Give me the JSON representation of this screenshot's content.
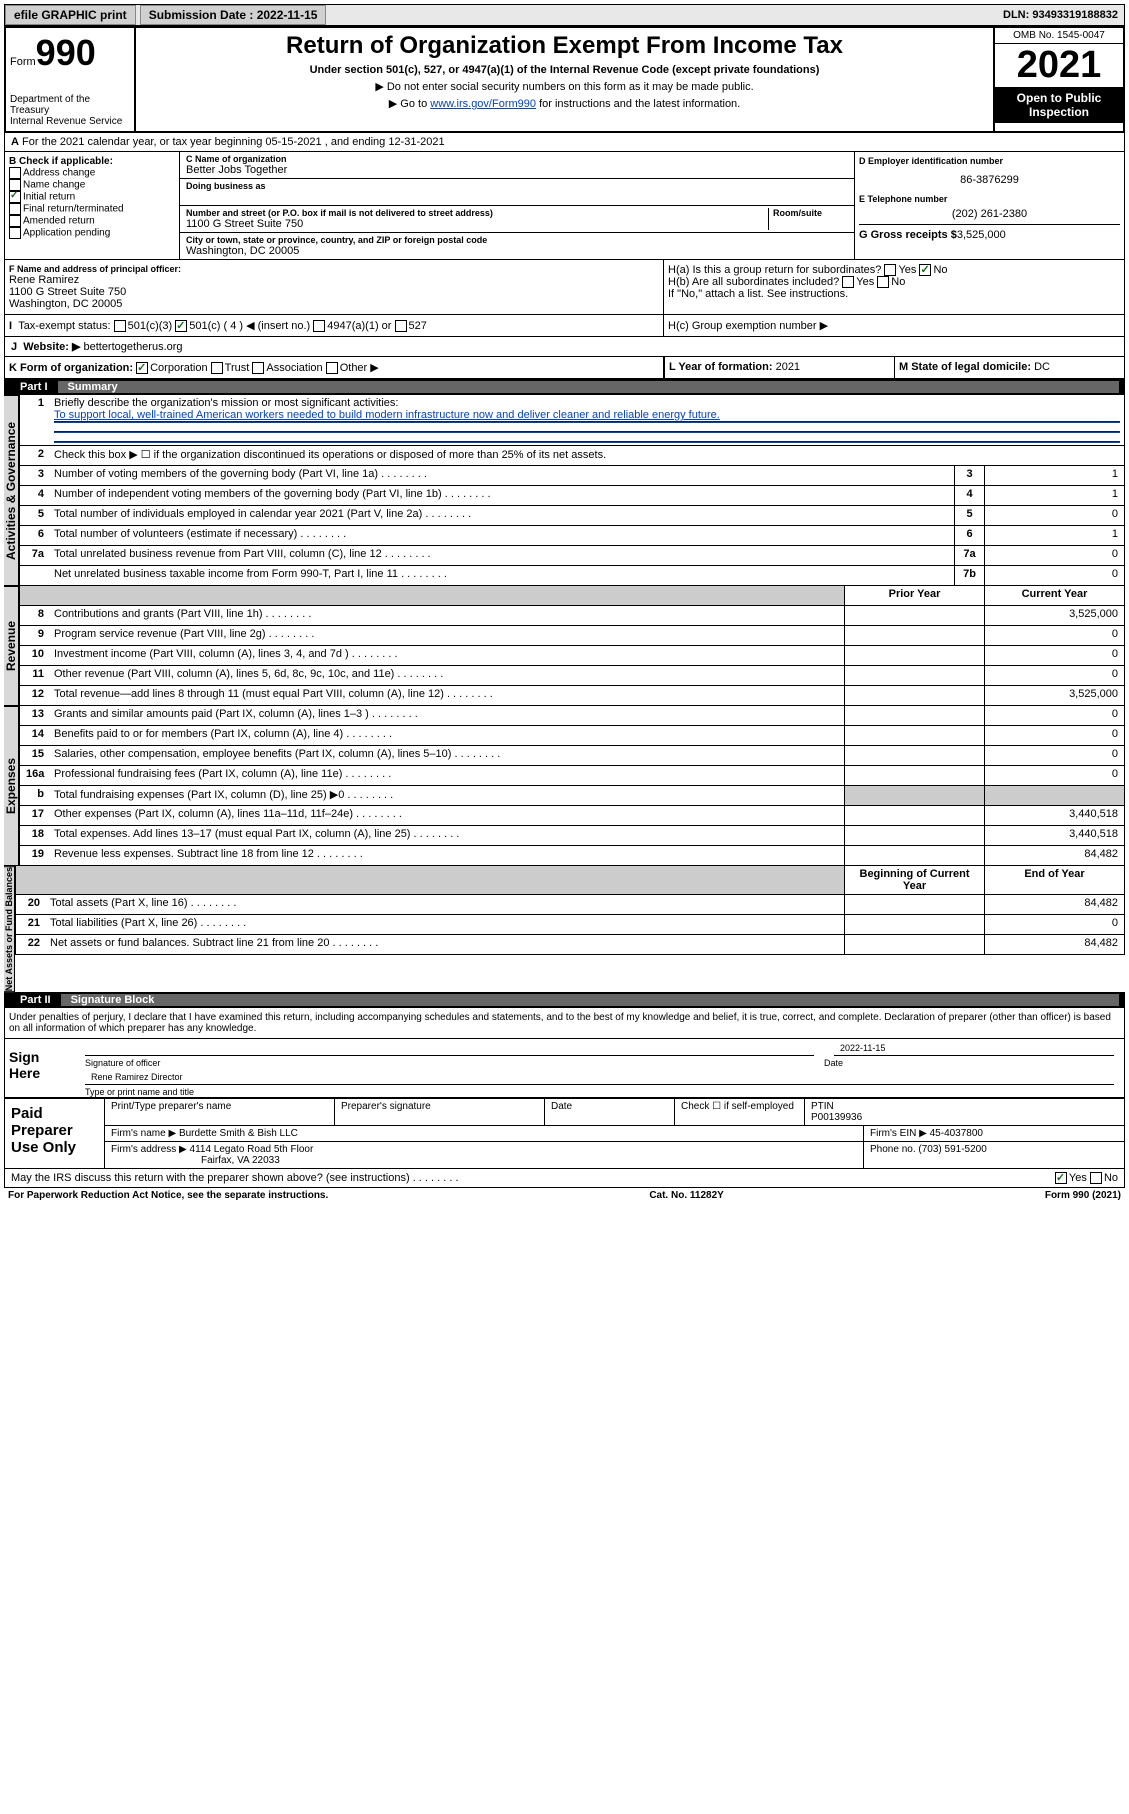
{
  "topbar": {
    "efile": "efile GRAPHIC print",
    "sub_label": "Submission Date : 2022-11-15",
    "dln": "DLN: 93493319188832"
  },
  "header": {
    "form_label": "Form",
    "form_num": "990",
    "title": "Return of Organization Exempt From Income Tax",
    "subtitle": "Under section 501(c), 527, or 4947(a)(1) of the Internal Revenue Code (except private foundations)",
    "note1": "▶ Do not enter social security numbers on this form as it may be made public.",
    "note2_prefix": "▶ Go to ",
    "note2_link": "www.irs.gov/Form990",
    "note2_suffix": " for instructions and the latest information.",
    "dept": "Department of the Treasury\nInternal Revenue Service",
    "omb": "OMB No. 1545-0047",
    "year": "2021",
    "inspect": "Open to Public Inspection"
  },
  "line_a": "For the 2021 calendar year, or tax year beginning 05-15-2021   , and ending 12-31-2021",
  "section_b": {
    "label": "B Check if applicable:",
    "opts": [
      "Address change",
      "Name change",
      "Initial return",
      "Final return/terminated",
      "Amended return",
      "Application pending"
    ],
    "checked_idx": 2
  },
  "section_c": {
    "name_label": "C Name of organization",
    "org_name": "Better Jobs Together",
    "dba_label": "Doing business as",
    "addr_label": "Number and street (or P.O. box if mail is not delivered to street address)",
    "room_label": "Room/suite",
    "addr": "1100 G Street Suite 750",
    "city_label": "City or town, state or province, country, and ZIP or foreign postal code",
    "city": "Washington, DC  20005"
  },
  "section_d": {
    "label": "D Employer identification number",
    "ein": "86-3876299"
  },
  "section_e": {
    "label": "E Telephone number",
    "phone": "(202) 261-2380"
  },
  "section_g": {
    "label": "G Gross receipts $",
    "amount": "3,525,000"
  },
  "section_f": {
    "label": "F  Name and address of principal officer:",
    "name": "Rene Ramirez",
    "addr1": "1100 G Street Suite 750",
    "addr2": "Washington, DC  20005"
  },
  "section_h": {
    "ha": "H(a)  Is this a group return for subordinates?",
    "hb": "H(b)  Are all subordinates included?",
    "hb_note": "If \"No,\" attach a list. See instructions.",
    "hc": "H(c)  Group exemption number ▶",
    "yes": "Yes",
    "no": "No"
  },
  "section_i": {
    "label": "Tax-exempt status:",
    "opts": [
      "501(c)(3)",
      "501(c) ( 4 ) ◀ (insert no.)",
      "4947(a)(1) or",
      "527"
    ]
  },
  "section_j": {
    "label": "Website: ▶",
    "url": "bettertogetherus.org"
  },
  "section_k": {
    "label": "K Form of organization:",
    "opts": [
      "Corporation",
      "Trust",
      "Association",
      "Other ▶"
    ]
  },
  "section_l": {
    "label": "L Year of formation:",
    "val": "2021"
  },
  "section_m": {
    "label": "M State of legal domicile:",
    "val": "DC"
  },
  "part1": {
    "num": "Part I",
    "title": "Summary"
  },
  "summary": {
    "l1_label": "Briefly describe the organization's mission or most significant activities:",
    "l1_mission": "To support local, well-trained American workers needed to build modern infrastructure now and deliver cleaner and reliable energy future.",
    "l2": "Check this box ▶ ☐  if the organization discontinued its operations or disposed of more than 25% of its net assets.",
    "lines": [
      {
        "n": "3",
        "desc": "Number of voting members of the governing body (Part VI, line 1a)",
        "box": "3",
        "val": "1"
      },
      {
        "n": "4",
        "desc": "Number of independent voting members of the governing body (Part VI, line 1b)",
        "box": "4",
        "val": "1"
      },
      {
        "n": "5",
        "desc": "Total number of individuals employed in calendar year 2021 (Part V, line 2a)",
        "box": "5",
        "val": "0"
      },
      {
        "n": "6",
        "desc": "Total number of volunteers (estimate if necessary)",
        "box": "6",
        "val": "1"
      },
      {
        "n": "7a",
        "desc": "Total unrelated business revenue from Part VIII, column (C), line 12",
        "box": "7a",
        "val": "0"
      },
      {
        "n": "",
        "desc": "Net unrelated business taxable income from Form 990-T, Part I, line 11",
        "box": "7b",
        "val": "0"
      }
    ]
  },
  "revenue": {
    "hdr_prior": "Prior Year",
    "hdr_curr": "Current Year",
    "lines": [
      {
        "n": "8",
        "desc": "Contributions and grants (Part VIII, line 1h)",
        "prior": "",
        "curr": "3,525,000"
      },
      {
        "n": "9",
        "desc": "Program service revenue (Part VIII, line 2g)",
        "prior": "",
        "curr": "0"
      },
      {
        "n": "10",
        "desc": "Investment income (Part VIII, column (A), lines 3, 4, and 7d )",
        "prior": "",
        "curr": "0"
      },
      {
        "n": "11",
        "desc": "Other revenue (Part VIII, column (A), lines 5, 6d, 8c, 9c, 10c, and 11e)",
        "prior": "",
        "curr": "0"
      },
      {
        "n": "12",
        "desc": "Total revenue—add lines 8 through 11 (must equal Part VIII, column (A), line 12)",
        "prior": "",
        "curr": "3,525,000"
      }
    ]
  },
  "expenses": {
    "lines": [
      {
        "n": "13",
        "desc": "Grants and similar amounts paid (Part IX, column (A), lines 1–3 )",
        "prior": "",
        "curr": "0"
      },
      {
        "n": "14",
        "desc": "Benefits paid to or for members (Part IX, column (A), line 4)",
        "prior": "",
        "curr": "0"
      },
      {
        "n": "15",
        "desc": "Salaries, other compensation, employee benefits (Part IX, column (A), lines 5–10)",
        "prior": "",
        "curr": "0"
      },
      {
        "n": "16a",
        "desc": "Professional fundraising fees (Part IX, column (A), line 11e)",
        "prior": "",
        "curr": "0"
      },
      {
        "n": "b",
        "desc": "Total fundraising expenses (Part IX, column (D), line 25) ▶0",
        "prior": "gray",
        "curr": "gray"
      },
      {
        "n": "17",
        "desc": "Other expenses (Part IX, column (A), lines 11a–11d, 11f–24e)",
        "prior": "",
        "curr": "3,440,518"
      },
      {
        "n": "18",
        "desc": "Total expenses. Add lines 13–17 (must equal Part IX, column (A), line 25)",
        "prior": "",
        "curr": "3,440,518"
      },
      {
        "n": "19",
        "desc": "Revenue less expenses. Subtract line 18 from line 12",
        "prior": "",
        "curr": "84,482"
      }
    ]
  },
  "netassets": {
    "hdr_begin": "Beginning of Current Year",
    "hdr_end": "End of Year",
    "lines": [
      {
        "n": "20",
        "desc": "Total assets (Part X, line 16)",
        "prior": "",
        "curr": "84,482"
      },
      {
        "n": "21",
        "desc": "Total liabilities (Part X, line 26)",
        "prior": "",
        "curr": "0"
      },
      {
        "n": "22",
        "desc": "Net assets or fund balances. Subtract line 21 from line 20",
        "prior": "",
        "curr": "84,482"
      }
    ]
  },
  "part2": {
    "num": "Part II",
    "title": "Signature Block"
  },
  "declare": "Under penalties of perjury, I declare that I have examined this return, including accompanying schedules and statements, and to the best of my knowledge and belief, it is true, correct, and complete. Declaration of preparer (other than officer) is based on all information of which preparer has any knowledge.",
  "sign": {
    "label": "Sign Here",
    "sig_label": "Signature of officer",
    "date": "2022-11-15",
    "date_label": "Date",
    "name": "Rene Ramirez Director",
    "name_label": "Type or print name and title"
  },
  "paid": {
    "label": "Paid Preparer Use Only",
    "h1": "Print/Type preparer's name",
    "h2": "Preparer's signature",
    "h3": "Date",
    "h4": "Check ☐ if self-employed",
    "ptin_label": "PTIN",
    "ptin": "P00139936",
    "firm_label": "Firm's name   ▶",
    "firm": "Burdette Smith & Bish LLC",
    "ein_label": "Firm's EIN ▶",
    "ein": "45-4037800",
    "addr_label": "Firm's address ▶",
    "addr1": "4114 Legato Road 5th Floor",
    "addr2": "Fairfax, VA  22033",
    "phone_label": "Phone no.",
    "phone": "(703) 591-5200"
  },
  "discuss": {
    "q": "May the IRS discuss this return with the preparer shown above? (see instructions)",
    "yes": "Yes",
    "no": "No"
  },
  "footer": {
    "left": "For Paperwork Reduction Act Notice, see the separate instructions.",
    "mid": "Cat. No. 11282Y",
    "right": "Form 990 (2021)"
  },
  "side_labels": {
    "activities": "Activities & Governance",
    "revenue": "Revenue",
    "expenses": "Expenses",
    "netassets": "Net Assets or Fund Balances"
  }
}
